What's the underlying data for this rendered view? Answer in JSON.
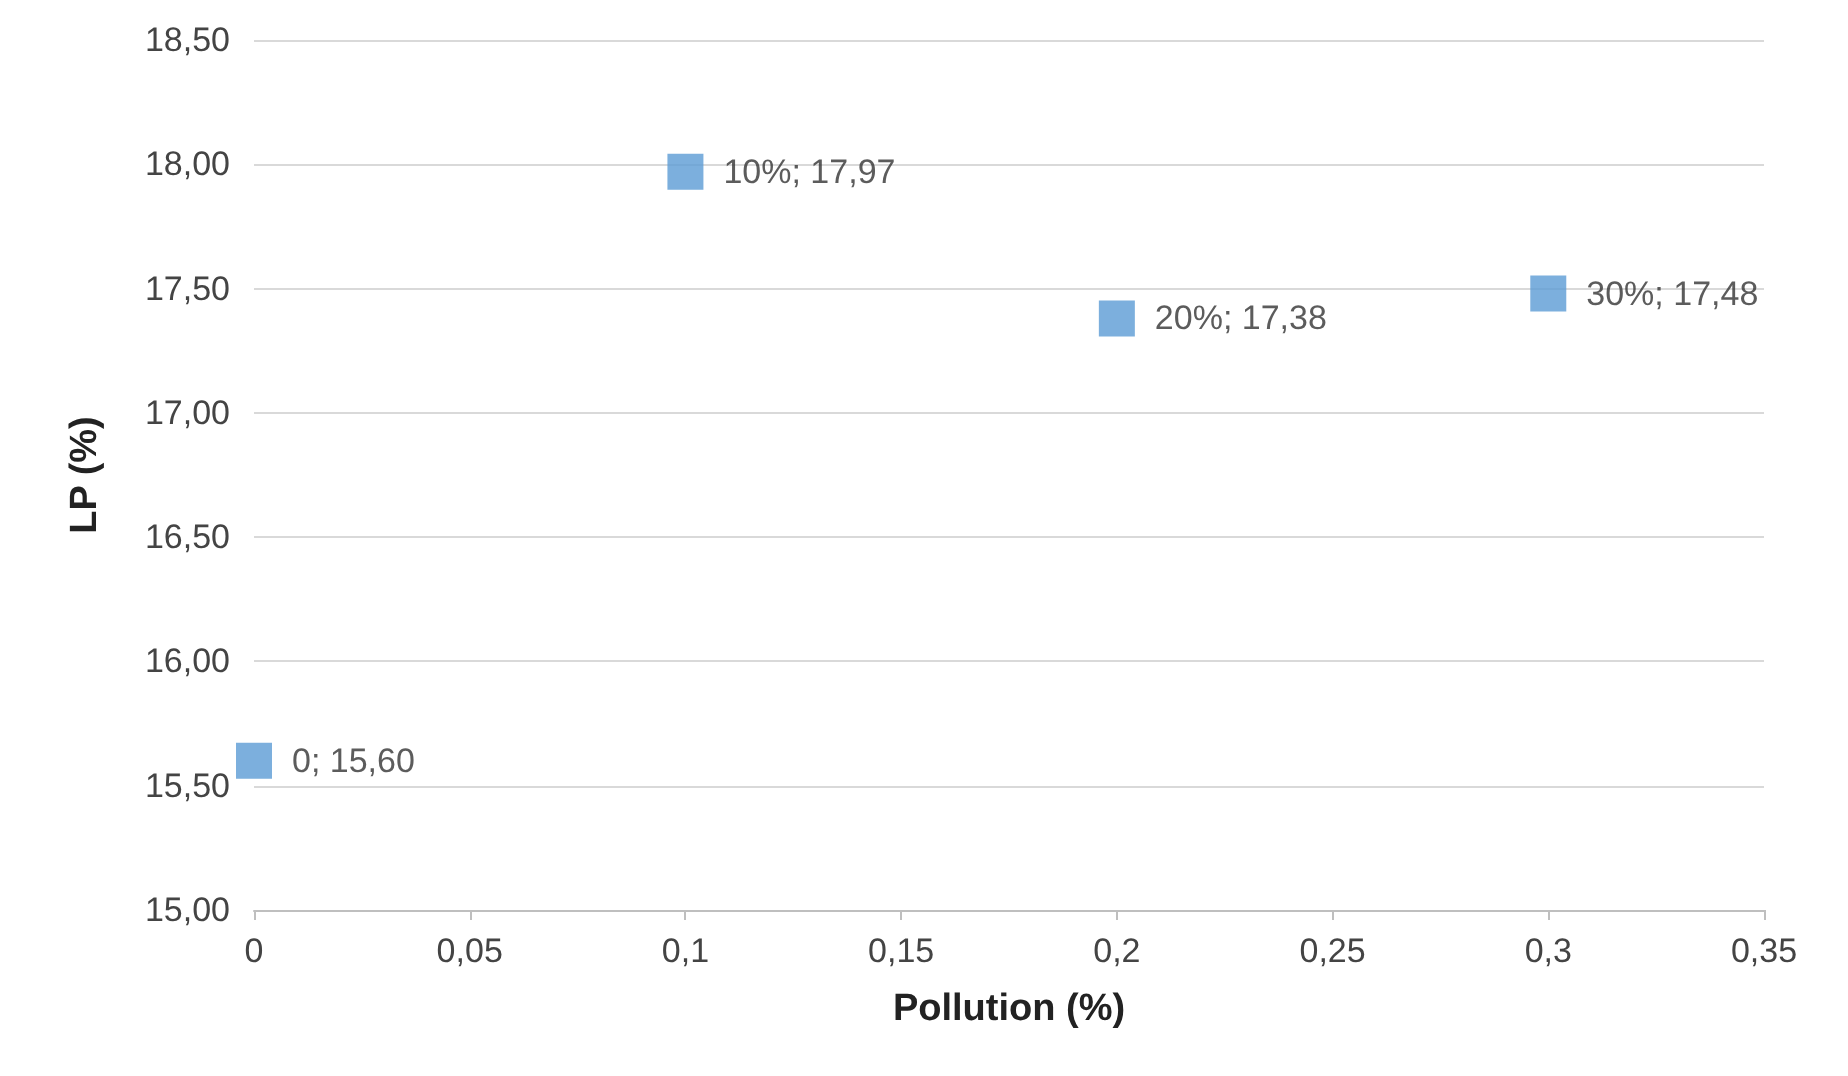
{
  "chart_data": {
    "type": "scatter",
    "xlabel": "Pollution (%)",
    "ylabel": "LP (%)",
    "x": [
      0,
      0.1,
      0.2,
      0.3
    ],
    "series": [
      {
        "color": "#5b9bd5",
        "values": [
          15.6,
          17.97,
          17.38,
          17.48
        ],
        "value_labels": [
          "0; 15,60",
          "10%; 17,97",
          "20%; 17,38",
          "30%; 17,48"
        ]
      }
    ],
    "xlim": [
      0,
      0.35
    ],
    "xticks": [
      0,
      {
        "value": 0.05,
        "label": "0,05"
      },
      {
        "value": 0.1,
        "label": "0,1"
      },
      {
        "value": 0.15,
        "label": "0,15"
      },
      {
        "value": 0.2,
        "label": "0,2"
      },
      {
        "value": 0.25,
        "label": "0,25"
      },
      {
        "value": 0.3,
        "label": "0,3"
      },
      {
        "value": 0.35,
        "label": "0,35"
      }
    ],
    "ylim": [
      15,
      18.5
    ],
    "yticks": [
      {
        "value": 15,
        "label": "15,00"
      },
      {
        "value": 15.5,
        "label": "15,50"
      },
      {
        "value": 16,
        "label": "16,00"
      },
      {
        "value": 16.5,
        "label": "16,50"
      },
      {
        "value": 17,
        "label": "17,00"
      },
      {
        "value": 17.5,
        "label": "17,50"
      },
      {
        "value": 18,
        "label": "18,00"
      },
      {
        "value": 18.5,
        "label": "18,50"
      }
    ],
    "grid": "y",
    "marker": "square"
  }
}
